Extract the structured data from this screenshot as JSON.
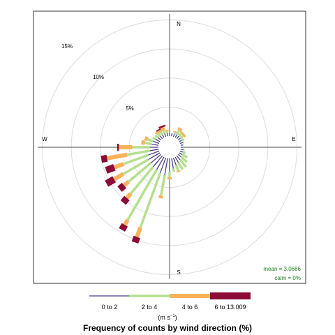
{
  "chart_data": {
    "type": "windrose",
    "title": "Frequency of counts by wind direction (%)",
    "directions": {
      "n": "N",
      "e": "E",
      "s": "S",
      "w": "W"
    },
    "ring_labels": [
      "5%",
      "10%",
      "15%"
    ],
    "ring_values": [
      5,
      10,
      15
    ],
    "max_percent": 21.5,
    "stats": {
      "mean": "mean = 3.0686",
      "calm": "calm = 0%"
    },
    "units_label": "(m s",
    "units_exp": "−1",
    "units_close": ")",
    "legend": {
      "labels": [
        "0 to 2",
        "2 to 4",
        "4 to 6",
        "6 to 13.009"
      ],
      "colors": [
        "#4a3f8c",
        "#b5df8e",
        "#f8b35a",
        "#8c0a36"
      ]
    },
    "series": [
      {
        "dir": 0,
        "values": [
          0.5,
          0,
          0,
          0
        ]
      },
      {
        "dir": 10,
        "values": [
          0.5,
          0,
          0,
          0
        ]
      },
      {
        "dir": 20,
        "values": [
          0.5,
          0.3,
          0.2,
          0
        ]
      },
      {
        "dir": 30,
        "values": [
          0.6,
          0.8,
          0.5,
          0
        ]
      },
      {
        "dir": 40,
        "values": [
          0.6,
          0.6,
          0.3,
          0
        ]
      },
      {
        "dir": 50,
        "values": [
          0.5,
          0.6,
          0.4,
          0
        ]
      },
      {
        "dir": 60,
        "values": [
          0.5,
          0.4,
          0,
          0
        ]
      },
      {
        "dir": 70,
        "values": [
          0.5,
          0.2,
          0,
          0
        ]
      },
      {
        "dir": 80,
        "values": [
          0.4,
          0.1,
          0,
          0
        ]
      },
      {
        "dir": 90,
        "values": [
          0.4,
          0.1,
          0,
          0
        ]
      },
      {
        "dir": 100,
        "values": [
          0.5,
          0.2,
          0,
          0
        ]
      },
      {
        "dir": 110,
        "values": [
          0.5,
          0.5,
          0,
          0
        ]
      },
      {
        "dir": 120,
        "values": [
          0.6,
          1.0,
          0,
          0
        ]
      },
      {
        "dir": 130,
        "values": [
          0.7,
          1.3,
          0,
          0
        ]
      },
      {
        "dir": 140,
        "values": [
          0.9,
          1.6,
          0,
          0
        ]
      },
      {
        "dir": 150,
        "values": [
          1.1,
          1.4,
          0,
          0
        ]
      },
      {
        "dir": 160,
        "values": [
          1.4,
          1.0,
          0.2,
          0
        ]
      },
      {
        "dir": 170,
        "values": [
          1.8,
          0.6,
          0,
          0
        ]
      },
      {
        "dir": 180,
        "values": [
          2.3,
          0.9,
          0.4,
          0
        ]
      },
      {
        "dir": 190,
        "values": [
          3.0,
          3.5,
          0.5,
          0
        ]
      },
      {
        "dir": 200,
        "values": [
          2.8,
          10.0,
          1.7,
          1.0
        ]
      },
      {
        "dir": 210,
        "values": [
          2.5,
          10.0,
          1.0,
          1.0
        ]
      },
      {
        "dir": 220,
        "values": [
          2.5,
          6.0,
          1.0,
          1.0
        ]
      },
      {
        "dir": 230,
        "values": [
          2.3,
          5.0,
          1.0,
          1.0
        ]
      },
      {
        "dir": 240,
        "values": [
          2.3,
          5.0,
          1.8,
          1.5
        ]
      },
      {
        "dir": 250,
        "values": [
          2.0,
          4.5,
          1.7,
          1.5
        ]
      },
      {
        "dir": 260,
        "values": [
          1.5,
          4.0,
          3.5,
          1.0
        ]
      },
      {
        "dir": 270,
        "values": [
          1.5,
          3.0,
          2.3,
          0.3
        ]
      },
      {
        "dir": 280,
        "values": [
          1.2,
          1.2,
          0.6,
          0
        ]
      },
      {
        "dir": 290,
        "values": [
          1.1,
          1.0,
          0.5,
          0
        ]
      },
      {
        "dir": 300,
        "values": [
          0.9,
          0.5,
          0,
          0
        ]
      },
      {
        "dir": 310,
        "values": [
          0.7,
          0.6,
          0,
          0
        ]
      },
      {
        "dir": 320,
        "values": [
          0.6,
          0.6,
          0.4,
          0
        ]
      },
      {
        "dir": 330,
        "values": [
          0.6,
          0.5,
          0.4,
          0.2
        ]
      },
      {
        "dir": 340,
        "values": [
          0.6,
          0.6,
          0.5,
          0.3
        ]
      },
      {
        "dir": 350,
        "values": [
          0.6,
          0.3,
          0.2,
          0
        ]
      }
    ]
  }
}
